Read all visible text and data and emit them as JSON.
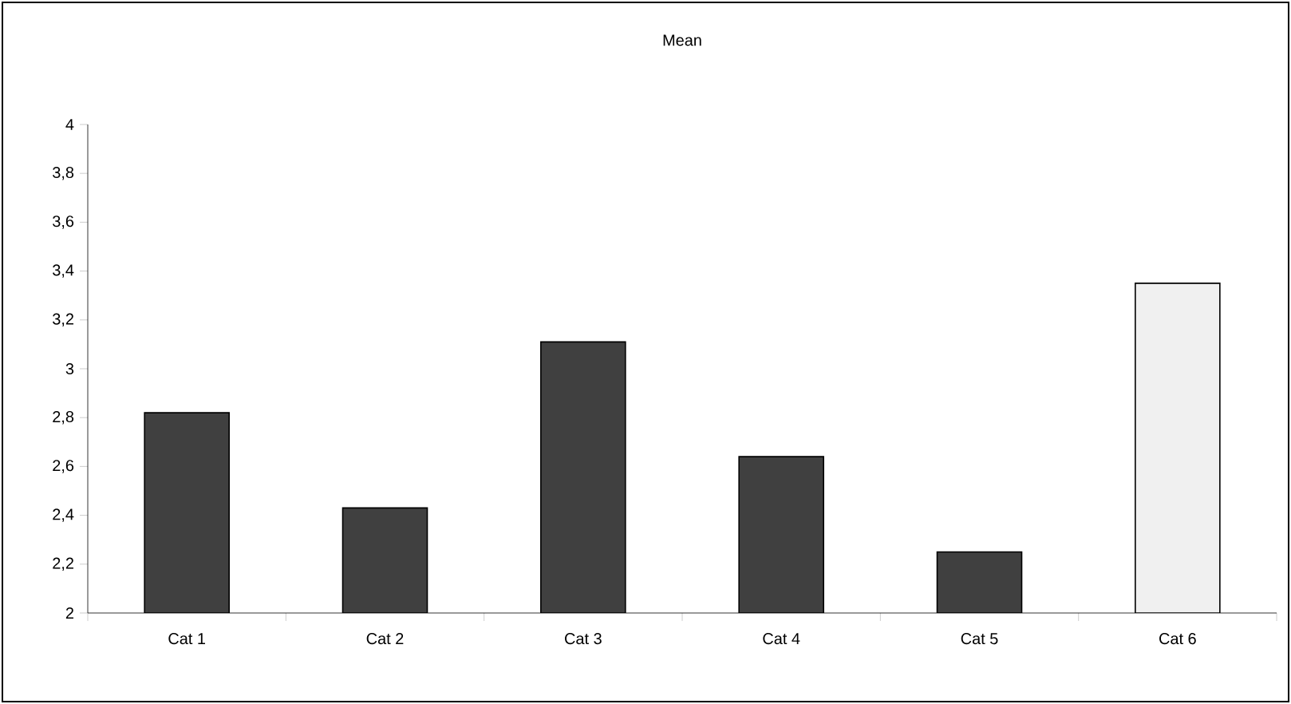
{
  "chart_data": {
    "type": "bar",
    "title": "Mean",
    "categories": [
      "Cat 1",
      "Cat 2",
      "Cat 3",
      "Cat 4",
      "Cat 5",
      "Cat 6"
    ],
    "values": [
      2.82,
      2.43,
      3.11,
      2.64,
      2.25,
      3.35
    ],
    "colors": [
      "#404040",
      "#404040",
      "#404040",
      "#404040",
      "#404040",
      "#f0f0f0"
    ],
    "ylim": [
      2,
      4
    ],
    "yticks": [
      2,
      {
        "value": 2.2,
        "label": "2,2"
      },
      {
        "value": 2.4,
        "label": "2,4"
      },
      {
        "value": 2.6,
        "label": "2,6"
      },
      {
        "value": 2.8,
        "label": "2,8"
      },
      3,
      {
        "value": 3.2,
        "label": "3,2"
      },
      {
        "value": 3.4,
        "label": "3,4"
      },
      {
        "value": 3.6,
        "label": "3,6"
      },
      {
        "value": 3.8,
        "label": "3,8"
      },
      4
    ],
    "grid": false
  }
}
